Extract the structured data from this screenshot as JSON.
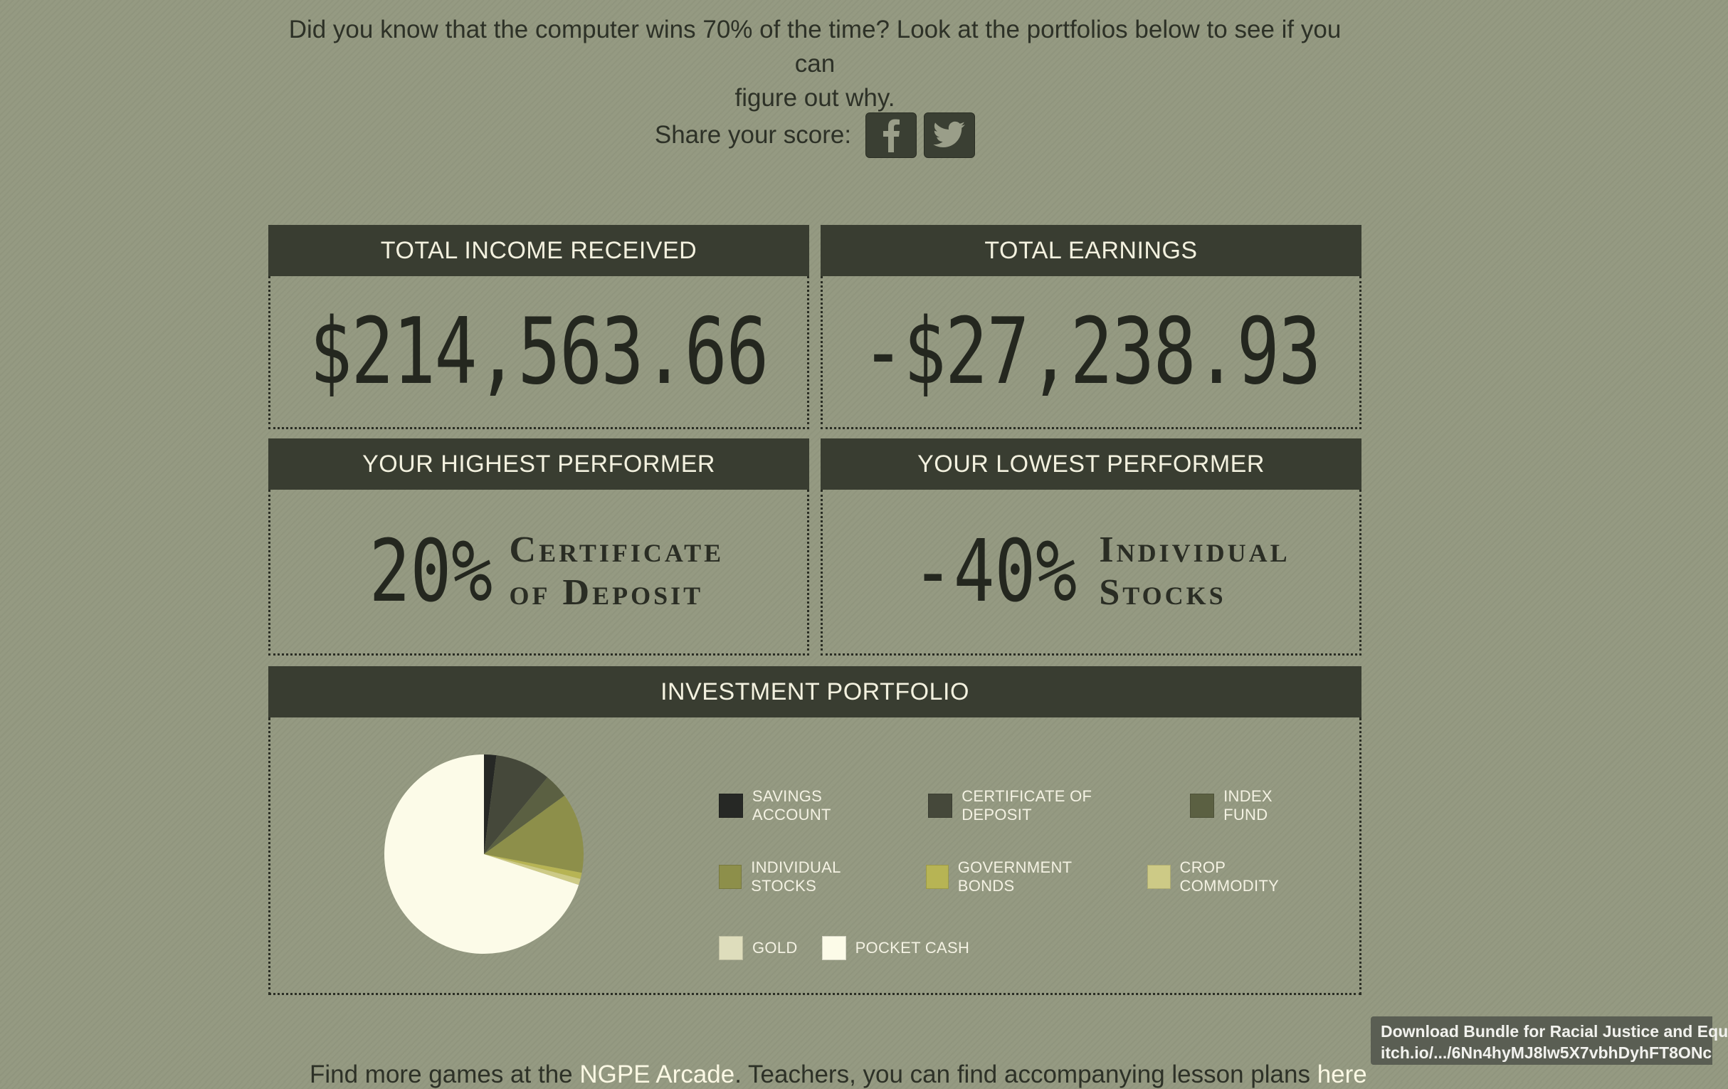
{
  "intro": {
    "line1": "Did you know that the computer wins 70% of the time? Look at the portfolios below to see if you can",
    "line2": "figure out why."
  },
  "share": {
    "label": "Share your score:",
    "facebook_icon": "facebook-icon",
    "twitter_icon": "twitter-icon"
  },
  "panels": {
    "income": {
      "title": "TOTAL INCOME RECEIVED",
      "value": "$214,563.66"
    },
    "earnings": {
      "title": "TOTAL EARNINGS",
      "value": "-$27,238.93"
    },
    "highest": {
      "title": "YOUR HIGHEST PERFORMER",
      "percent": "20%",
      "name_line1": "Certificate",
      "name_line2": "of Deposit"
    },
    "lowest": {
      "title": "YOUR LOWEST PERFORMER",
      "percent": "-40%",
      "name_line1": "Individual",
      "name_line2": "Stocks"
    },
    "portfolio": {
      "title": "INVESTMENT PORTFOLIO"
    }
  },
  "chart_data": {
    "type": "pie",
    "title": "INVESTMENT PORTFOLIO",
    "categories": [
      "SAVINGS ACCOUNT",
      "CERTIFICATE OF DEPOSIT",
      "INDEX FUND",
      "INDIVIDUAL STOCKS",
      "GOVERNMENT BONDS",
      "CROP COMMODITY",
      "GOLD",
      "POCKET CASH"
    ],
    "values": [
      2,
      9,
      4,
      13,
      1,
      1,
      0,
      70
    ],
    "colors": [
      "#262825",
      "#45483a",
      "#5b6042",
      "#8d8f4a",
      "#b7b454",
      "#cdca86",
      "#deddbc",
      "#fcfbe8"
    ],
    "legend_position": "right"
  },
  "footer": {
    "prefix": "Find more games at the ",
    "arcade_link": "NGPE Arcade",
    "middle": ". Teachers, you can find accompanying lesson plans ",
    "here_link": "here"
  },
  "tooltip": {
    "line1": "Download Bundle for Racial Justice and Equ",
    "line2": "itch.io/.../6Nn4hyMJ8lw5X7vbhDyhFT8ONc"
  }
}
